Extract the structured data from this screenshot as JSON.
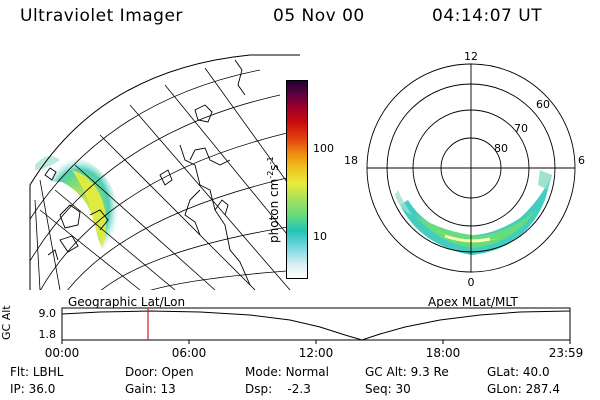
{
  "header": {
    "instrument": "Ultraviolet Imager",
    "date": "05 Nov 00",
    "time": "04:14:07 UT"
  },
  "map_left": {
    "label": "Geographic Lat/Lon"
  },
  "map_right": {
    "label": "Apex MLat/MLT",
    "mlt_labels": [
      "12",
      "18",
      "6",
      "0"
    ],
    "lat_labels": [
      "60",
      "70",
      "80"
    ]
  },
  "colorbar": {
    "unit_label": "photon cm",
    "unit_sup1": "-2",
    "unit_s": "s",
    "unit_sup2": "-1",
    "ticks": [
      "100",
      "10"
    ],
    "scale": "log",
    "colors": [
      "#ffffff",
      "#d8eef2",
      "#66d4dc",
      "#22c4b4",
      "#66dc7c",
      "#a8e05c",
      "#e8ec3c",
      "#f0c020",
      "#f08c10",
      "#e04010",
      "#c80c0c",
      "#a0002a",
      "#600040",
      "#200030"
    ]
  },
  "timeline": {
    "y_axis_title": "GC Alt",
    "y_ticks": [
      "9.0",
      "1.8"
    ],
    "x_ticks": [
      "00:00",
      "06:00",
      "12:00",
      "18:00",
      "23:59"
    ],
    "current_time_marker": "04:14",
    "marker_color": "#cc2020"
  },
  "status": {
    "row1": [
      {
        "key": "Flt:",
        "value": "LBHL"
      },
      {
        "key": "Door:",
        "value": "Open"
      },
      {
        "key": "Mode:",
        "value": "Normal"
      },
      {
        "key": "GC Alt:",
        "value": "9.3 Re"
      },
      {
        "key": "GLat:",
        "value": "40.0"
      }
    ],
    "row2": [
      {
        "key": "IP:",
        "value": "36.0"
      },
      {
        "key": "Gain:",
        "value": "13"
      },
      {
        "key": "Dsp:",
        "value": "-2.3"
      },
      {
        "key": "Seq:",
        "value": "30"
      },
      {
        "key": "GLon:",
        "value": "287.4"
      }
    ]
  }
}
